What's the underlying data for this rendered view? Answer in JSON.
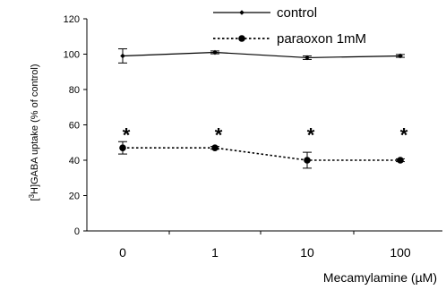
{
  "chart_data": {
    "type": "line",
    "categories": [
      "0",
      "1",
      "10",
      "100"
    ],
    "xlabel": "Mecamylamine (µM)",
    "ylabel": "[³H]GABA uptake (% of control)",
    "ylim": [
      0,
      120
    ],
    "yticks": [
      0,
      20,
      40,
      60,
      80,
      100,
      120
    ],
    "grid": false,
    "legend_position": "top-right",
    "series": [
      {
        "name": "control",
        "values": [
          99,
          101,
          98,
          99
        ],
        "errors": [
          4,
          0.8,
          1,
          0.8
        ],
        "line_style": "solid",
        "marker": "small-diamond",
        "color": "#000000"
      },
      {
        "name": "paraoxon 1mM",
        "values": [
          47,
          47,
          40,
          40
        ],
        "errors": [
          3.5,
          0.8,
          4.5,
          0.8
        ],
        "line_style": "dotted",
        "marker": "circle",
        "color": "#000000"
      }
    ],
    "annotations": [
      "*",
      "*",
      "*",
      "*"
    ]
  }
}
